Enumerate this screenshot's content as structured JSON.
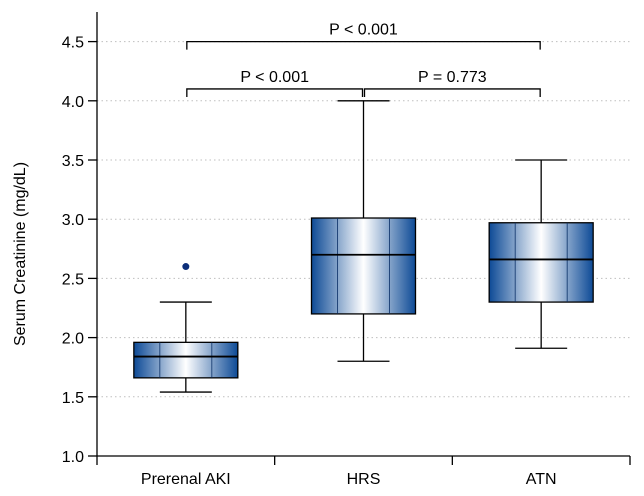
{
  "chart_data": {
    "type": "box",
    "title": "",
    "xlabel": "",
    "ylabel": "Serum Creatinine (mg/dL)",
    "ylim": [
      1.0,
      4.75
    ],
    "yticks": [
      1.0,
      1.5,
      2.0,
      2.5,
      3.0,
      3.5,
      4.0,
      4.5
    ],
    "ytick_labels": [
      "1.0",
      "1.5",
      "2.0",
      "2.5",
      "3.0",
      "3.5",
      "4.0",
      "4.5"
    ],
    "grid": "horizontal dotted",
    "categories": [
      "Prerenal AKI",
      "HRS",
      "ATN"
    ],
    "boxes": [
      {
        "category": "Prerenal AKI",
        "whisker_low": 1.54,
        "q1": 1.66,
        "median": 1.84,
        "q3": 1.96,
        "whisker_high": 2.3,
        "outliers": [
          2.6
        ]
      },
      {
        "category": "HRS",
        "whisker_low": 1.8,
        "q1": 2.2,
        "median": 2.7,
        "q3": 3.01,
        "whisker_high": 4.0,
        "outliers": []
      },
      {
        "category": "ATN",
        "whisker_low": 1.91,
        "q1": 2.3,
        "median": 2.66,
        "q3": 2.97,
        "whisker_high": 3.5,
        "outliers": []
      }
    ],
    "comparisons": [
      {
        "from": "Prerenal AKI",
        "to": "ATN",
        "label": "P < 0.001",
        "y": 4.5
      },
      {
        "from": "Prerenal AKI",
        "to": "HRS",
        "label": "P < 0.001",
        "y": 4.1
      },
      {
        "from": "HRS",
        "to": "ATN",
        "label": "P = 0.773",
        "y": 4.1
      }
    ],
    "colors": {
      "box_dark": "#0d4a96",
      "box_light": "#ffffff",
      "outlier": "#0d2f7a",
      "grid": "#bfbfbf"
    }
  }
}
